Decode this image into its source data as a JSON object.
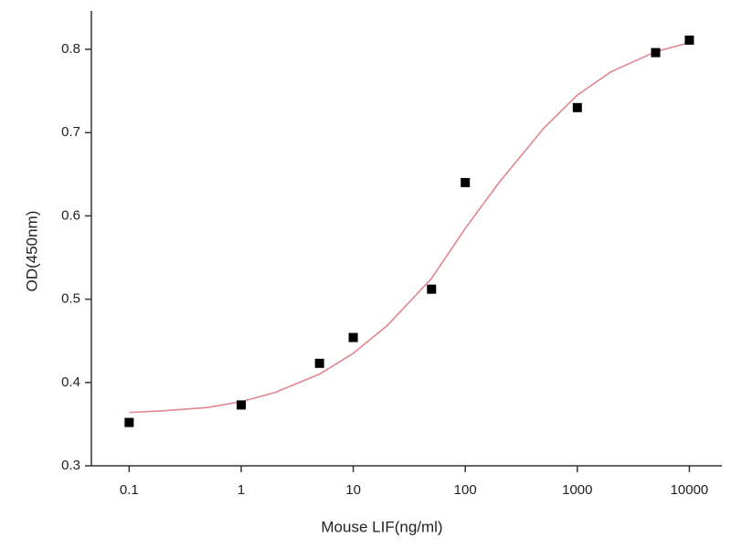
{
  "chart_data": {
    "type": "scatter",
    "x_label": "Mouse LIF(ng/ml)",
    "y_label": "OD(450nm)",
    "x_scale": "log",
    "xlim": [
      0.046,
      19500
    ],
    "ylim": [
      0.3,
      0.846
    ],
    "xticks": [
      0.1,
      1,
      10,
      100,
      1000,
      10000
    ],
    "yticks": [
      0.3,
      0.4,
      0.5,
      0.6,
      0.7,
      0.8
    ],
    "series": [
      {
        "type": "scatter",
        "color": "#000000",
        "x": [
          0.1,
          1,
          5,
          10,
          50,
          100,
          1000,
          5000,
          10000
        ],
        "values": [
          0.352,
          0.373,
          0.423,
          0.454,
          0.512,
          0.64,
          0.73,
          0.796,
          0.811
        ]
      },
      {
        "type": "line",
        "color": "#e0868f",
        "x": [
          0.1,
          0.2,
          0.5,
          1,
          2,
          5,
          10,
          20,
          50,
          100,
          200,
          500,
          1000,
          2000,
          5000,
          10000
        ],
        "values": [
          0.364,
          0.366,
          0.37,
          0.377,
          0.388,
          0.41,
          0.435,
          0.468,
          0.525,
          0.585,
          0.64,
          0.705,
          0.745,
          0.773,
          0.797,
          0.808
        ]
      }
    ]
  }
}
